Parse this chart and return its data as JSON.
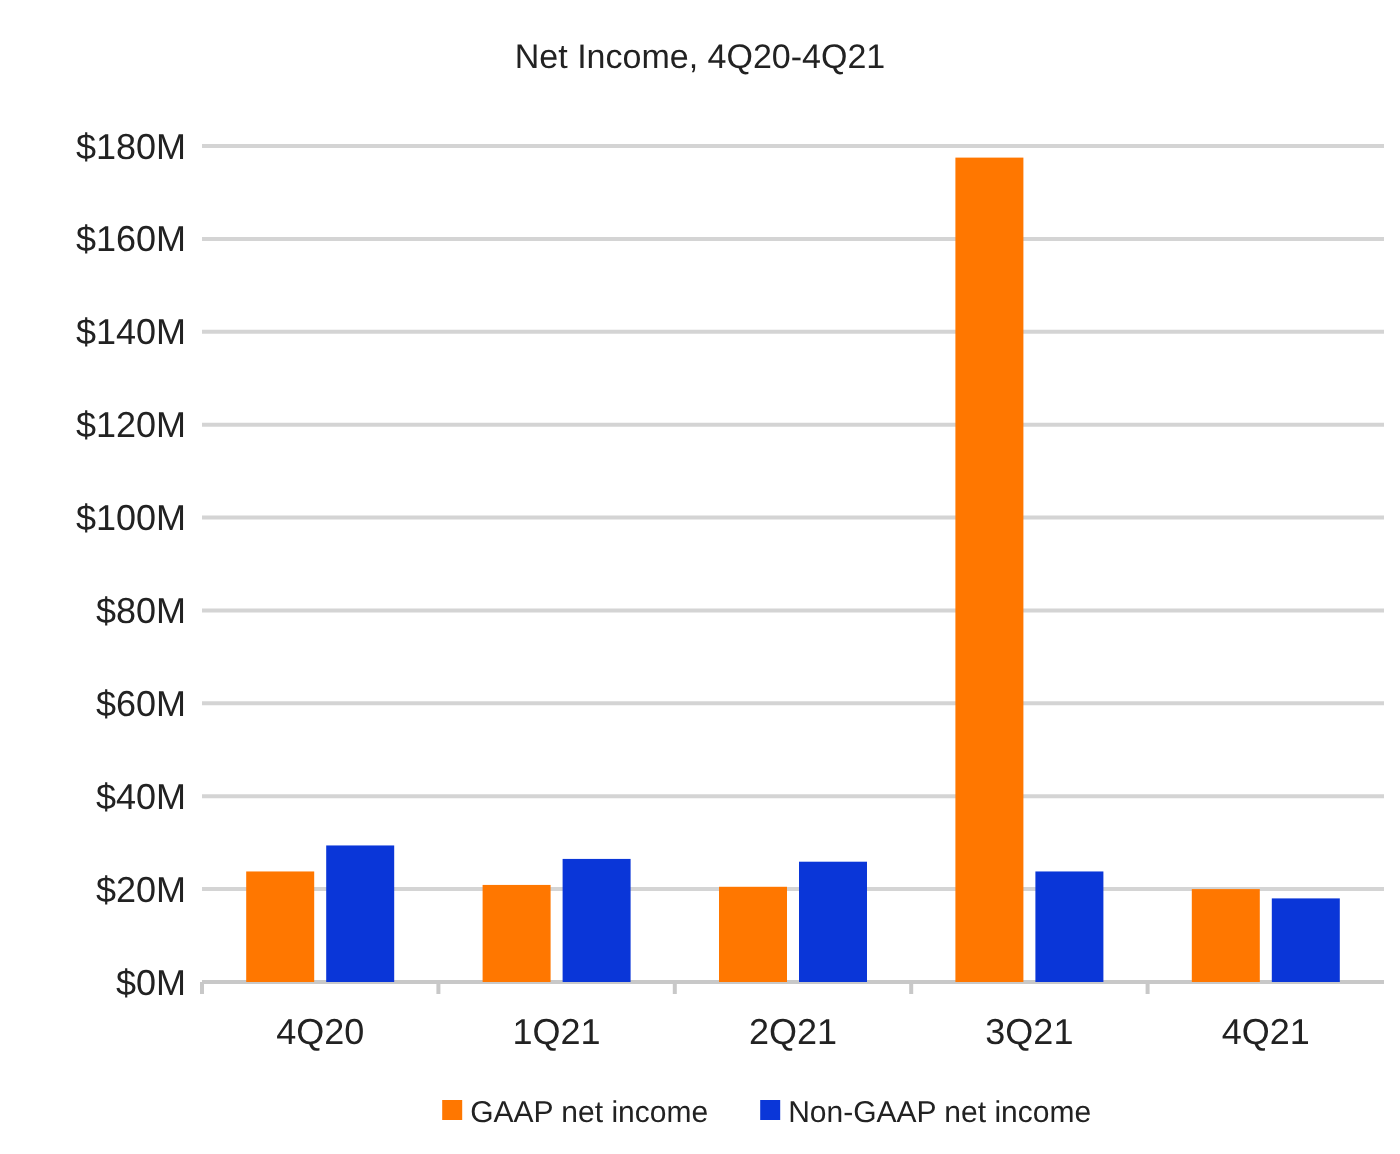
{
  "chart_data": {
    "type": "bar",
    "title": "Net Income, 4Q20-4Q21",
    "categories": [
      "4Q20",
      "1Q21",
      "2Q21",
      "3Q21",
      "4Q21"
    ],
    "series": [
      {
        "name": "GAAP net income",
        "color": "#ff7700",
        "values": [
          23.8,
          20.9,
          20.5,
          177.5,
          20.0
        ]
      },
      {
        "name": "Non-GAAP net income",
        "color": "#0a36d8",
        "values": [
          29.4,
          26.5,
          25.9,
          23.8,
          18.0
        ]
      }
    ],
    "ylim": [
      0,
      180
    ],
    "yticks": [
      {
        "value": 0,
        "label": "$0M"
      },
      {
        "value": 20,
        "label": "$20M"
      },
      {
        "value": 40,
        "label": "$40M"
      },
      {
        "value": 60,
        "label": "$60M"
      },
      {
        "value": 80,
        "label": "$80M"
      },
      {
        "value": 100,
        "label": "$100M"
      },
      {
        "value": 120,
        "label": "$120M"
      },
      {
        "value": 140,
        "label": "$140M"
      },
      {
        "value": 160,
        "label": "$160M"
      },
      {
        "value": 180,
        "label": "$180M"
      }
    ],
    "grid": "y",
    "legend": "bottom"
  }
}
